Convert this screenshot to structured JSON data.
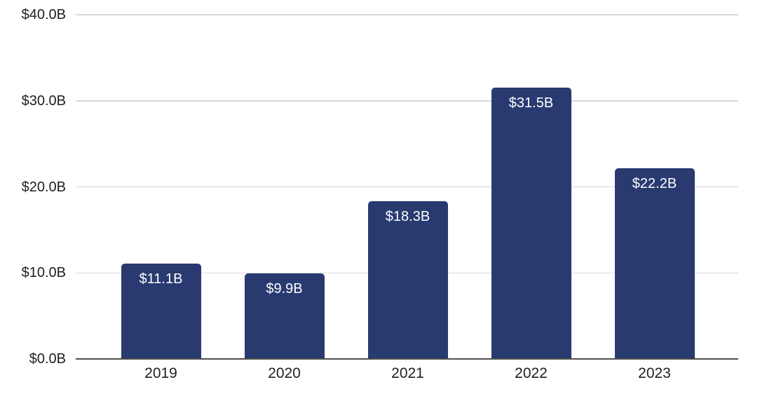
{
  "chart_data": {
    "type": "bar",
    "categories": [
      "2019",
      "2020",
      "2021",
      "2022",
      "2023"
    ],
    "values": [
      11.1,
      9.9,
      18.3,
      31.5,
      22.2
    ],
    "bar_labels": [
      "$11.1B",
      "$9.9B",
      "$18.3B",
      "$31.5B",
      "$22.2B"
    ],
    "title": "",
    "xlabel": "",
    "ylabel": "",
    "ylim": [
      0,
      40
    ],
    "y_tick_labels": [
      "$0.0B",
      "$10.0B",
      "$20.0B",
      "$30.0B",
      "$40.0B"
    ],
    "y_tick_values": [
      0,
      10,
      20,
      30,
      40
    ],
    "grid": true,
    "legend": false,
    "value_labels_position": "inside-top",
    "colors": {
      "bar": "#283A70",
      "bar_label_text": "#FFFFFF",
      "gridline": "#D8D8D8",
      "axis_line": "#4F4F4F",
      "tick_text": "#1F1F1F",
      "background": "#FFFFFF"
    }
  }
}
